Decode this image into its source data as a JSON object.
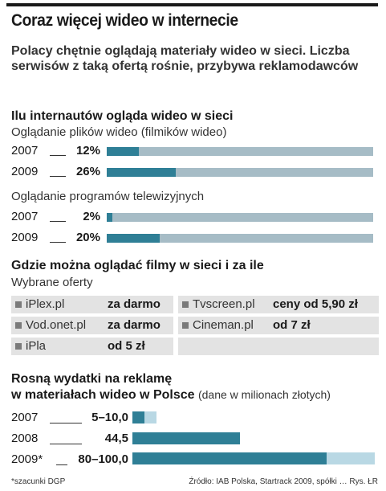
{
  "title": "Coraz więcej wideo w internecie",
  "lead": "Polacy chętnie oglądają materiały wideo w sieci. Liczba serwisów z taką ofertą rośnie, przybywa reklamodawców",
  "chart_data": [
    {
      "type": "bar",
      "title": "Ilu internautów ogląda wideo w sieci",
      "groups": [
        {
          "label": "Oglądanie plików wideo (filmików wideo)",
          "rows": [
            {
              "year": "2007",
              "label": "12%",
              "value": 12
            },
            {
              "year": "2009",
              "label": "26%",
              "value": 26
            }
          ]
        },
        {
          "label": "Oglądanie programów telewizyjnych",
          "rows": [
            {
              "year": "2007",
              "label": "2%",
              "value": 2
            },
            {
              "year": "2009",
              "label": "20%",
              "value": 20
            }
          ]
        }
      ],
      "ylim": [
        0,
        100
      ],
      "colors": {
        "fill": "#2f7f96",
        "track": "#a6bcc6"
      }
    },
    {
      "type": "table",
      "title": "Gdzie można oglądać filmy w sieci i za ile",
      "subtitle": "Wybrane oferty",
      "left": [
        {
          "name": "iPlex.pl",
          "price": "za darmo"
        },
        {
          "name": "Vod.onet.pl",
          "price": "za darmo"
        },
        {
          "name": "iPla",
          "price": "od 5 zł"
        }
      ],
      "right": [
        {
          "name": "Tvscreen.pl",
          "price": "ceny od 5,90 zł"
        },
        {
          "name": "Cineman.pl",
          "price": "od 7 zł"
        }
      ]
    },
    {
      "type": "bar",
      "title_line1": "Rosną wydatki na reklamę",
      "title_line2": "w materiałach wideo w Polsce",
      "unit_note": "(dane w milionach złotych)",
      "rows": [
        {
          "year": "2007",
          "label": "5–10,0",
          "min": 5,
          "max": 10
        },
        {
          "year": "2008",
          "label": "44,5",
          "min": 44.5,
          "max": 44.5
        },
        {
          "year": "2009*",
          "label": "80–100,0",
          "min": 80,
          "max": 100
        }
      ],
      "xlim": [
        0,
        100
      ],
      "colors": {
        "fill": "#2f7f96",
        "range": "#b9d8e4"
      }
    }
  ],
  "footnote_left": "*szacunki DGP",
  "footnote_right": "Źródło: IAB Polska, Startrack 2009, spółki … Rys. ŁR"
}
